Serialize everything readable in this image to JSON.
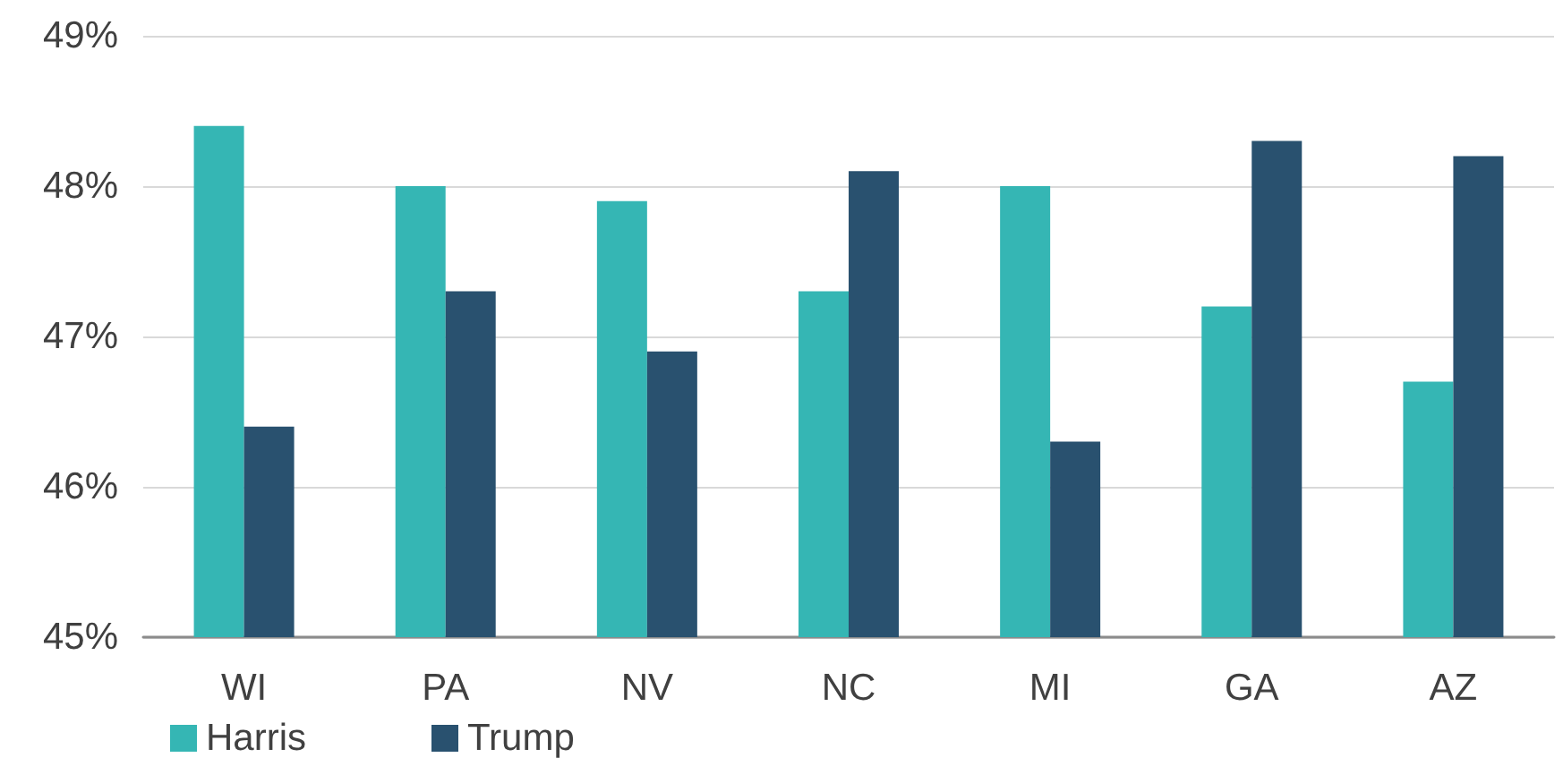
{
  "chart_data": {
    "type": "bar",
    "categories": [
      "WI",
      "PA",
      "NV",
      "NC",
      "MI",
      "GA",
      "AZ"
    ],
    "series": [
      {
        "name": "Harris",
        "color": "#35b6b4",
        "values": [
          48.4,
          48.0,
          47.9,
          47.3,
          48.0,
          47.2,
          46.7
        ]
      },
      {
        "name": "Trump",
        "color": "#29516f",
        "values": [
          46.4,
          47.3,
          46.9,
          48.1,
          46.3,
          48.3,
          48.2
        ]
      }
    ],
    "ylim": [
      45,
      49
    ],
    "yticks": [
      {
        "value": 45,
        "label": "45%"
      },
      {
        "value": 46,
        "label": "46%"
      },
      {
        "value": 47,
        "label": "47%"
      },
      {
        "value": 48,
        "label": "48%"
      },
      {
        "value": 49,
        "label": "49%"
      }
    ],
    "grid": "y",
    "legend": "bottom left"
  }
}
